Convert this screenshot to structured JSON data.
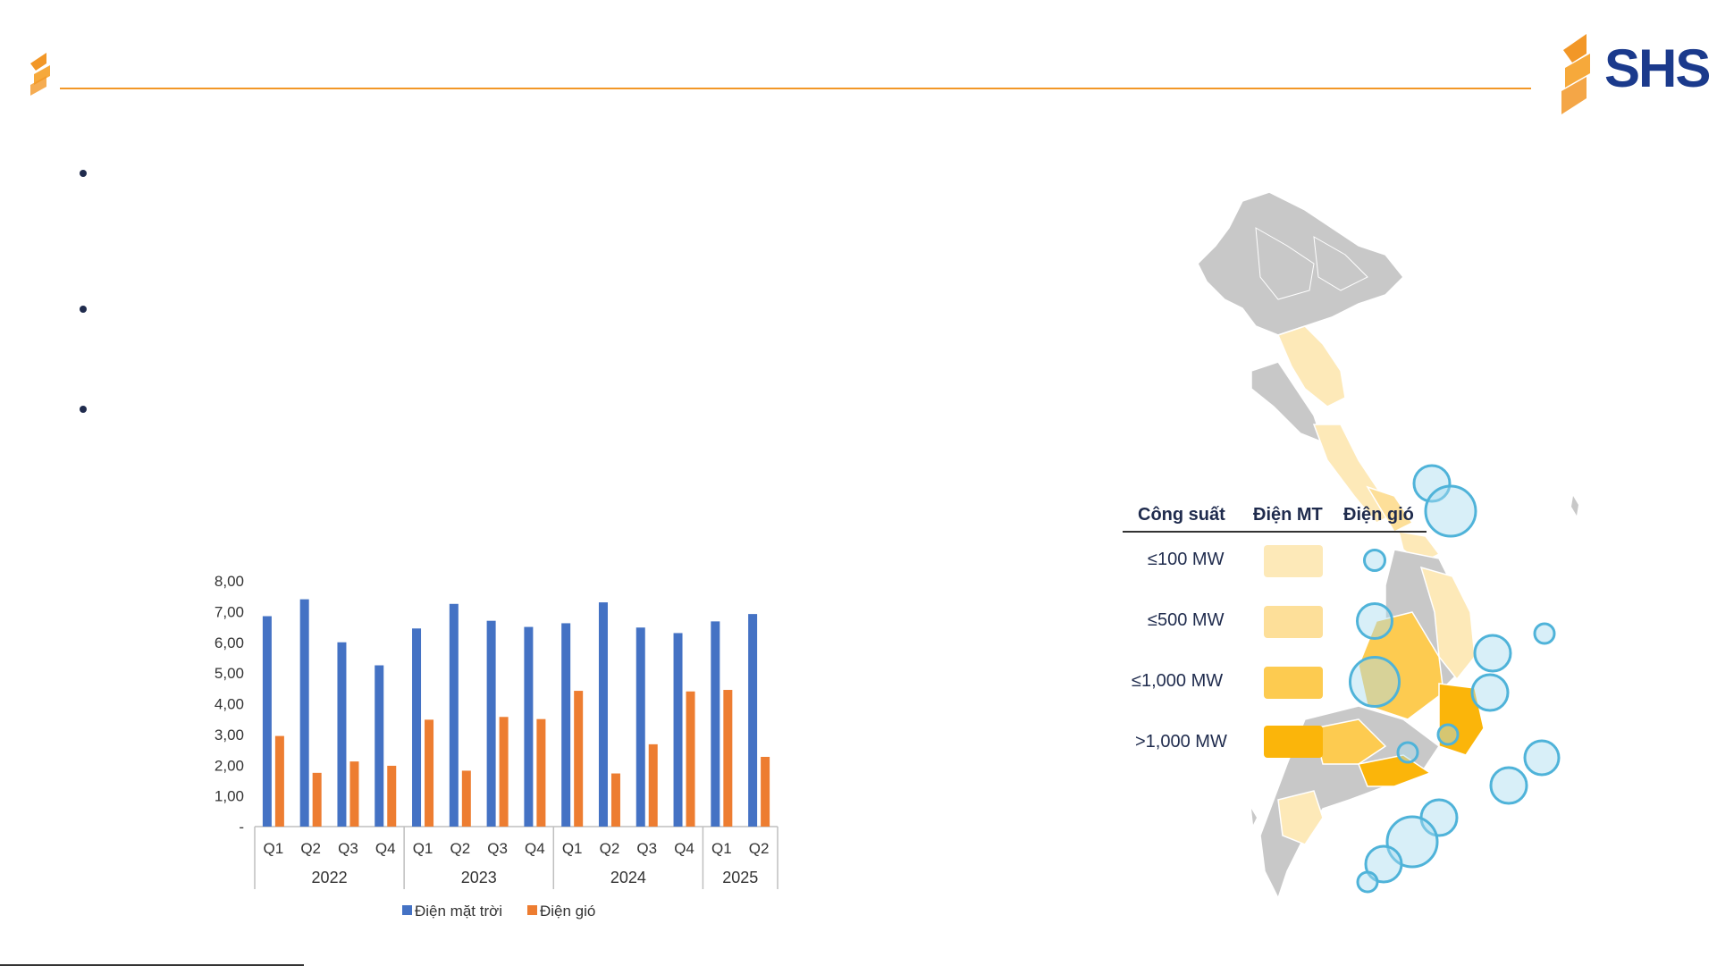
{
  "brand": {
    "name": "SHS",
    "mark_color": "#f29727",
    "text_color": "#1b3a8c"
  },
  "chart_data": {
    "type": "bar",
    "categories": [
      "Q1",
      "Q2",
      "Q3",
      "Q4",
      "Q1",
      "Q2",
      "Q3",
      "Q4",
      "Q1",
      "Q2",
      "Q3",
      "Q4",
      "Q1",
      "Q2"
    ],
    "groups": [
      {
        "label": "2022",
        "count": 4
      },
      {
        "label": "2023",
        "count": 4
      },
      {
        "label": "2024",
        "count": 4
      },
      {
        "label": "2025",
        "count": 2
      }
    ],
    "series": [
      {
        "name": "Điện mặt trời",
        "color": "#4472c4",
        "values": [
          6.85,
          7.4,
          6.0,
          5.25,
          6.45,
          7.25,
          6.7,
          6.5,
          6.62,
          7.3,
          6.48,
          6.3,
          6.68,
          6.92
        ]
      },
      {
        "name": "Điện gió",
        "color": "#ed7d31",
        "values": [
          2.95,
          1.75,
          2.12,
          1.98,
          3.48,
          1.82,
          3.57,
          3.5,
          4.42,
          1.73,
          2.68,
          4.4,
          4.45,
          2.27
        ]
      }
    ],
    "yticks": [
      "-",
      "1,00",
      "2,00",
      "3,00",
      "4,00",
      "5,00",
      "6,00",
      "7,00",
      "8,00"
    ],
    "ylim": [
      0,
      8
    ],
    "legend_position": "bottom"
  },
  "legend": {
    "headers": [
      "Công suất",
      "Điện MT",
      "Điện gió"
    ],
    "rows": [
      {
        "label": "≤100 MW",
        "fill": "#fde9b8",
        "circle_level": 1
      },
      {
        "label": "≤500 MW",
        "fill": "#fddf99",
        "circle_level": 2
      },
      {
        "label": "≤1,000 MW",
        "fill": "#fdcb50",
        "circle_level": 3
      },
      {
        "label": ">1,000 MW",
        "fill": "#fbb50a",
        "circle_level": 0
      }
    ]
  }
}
